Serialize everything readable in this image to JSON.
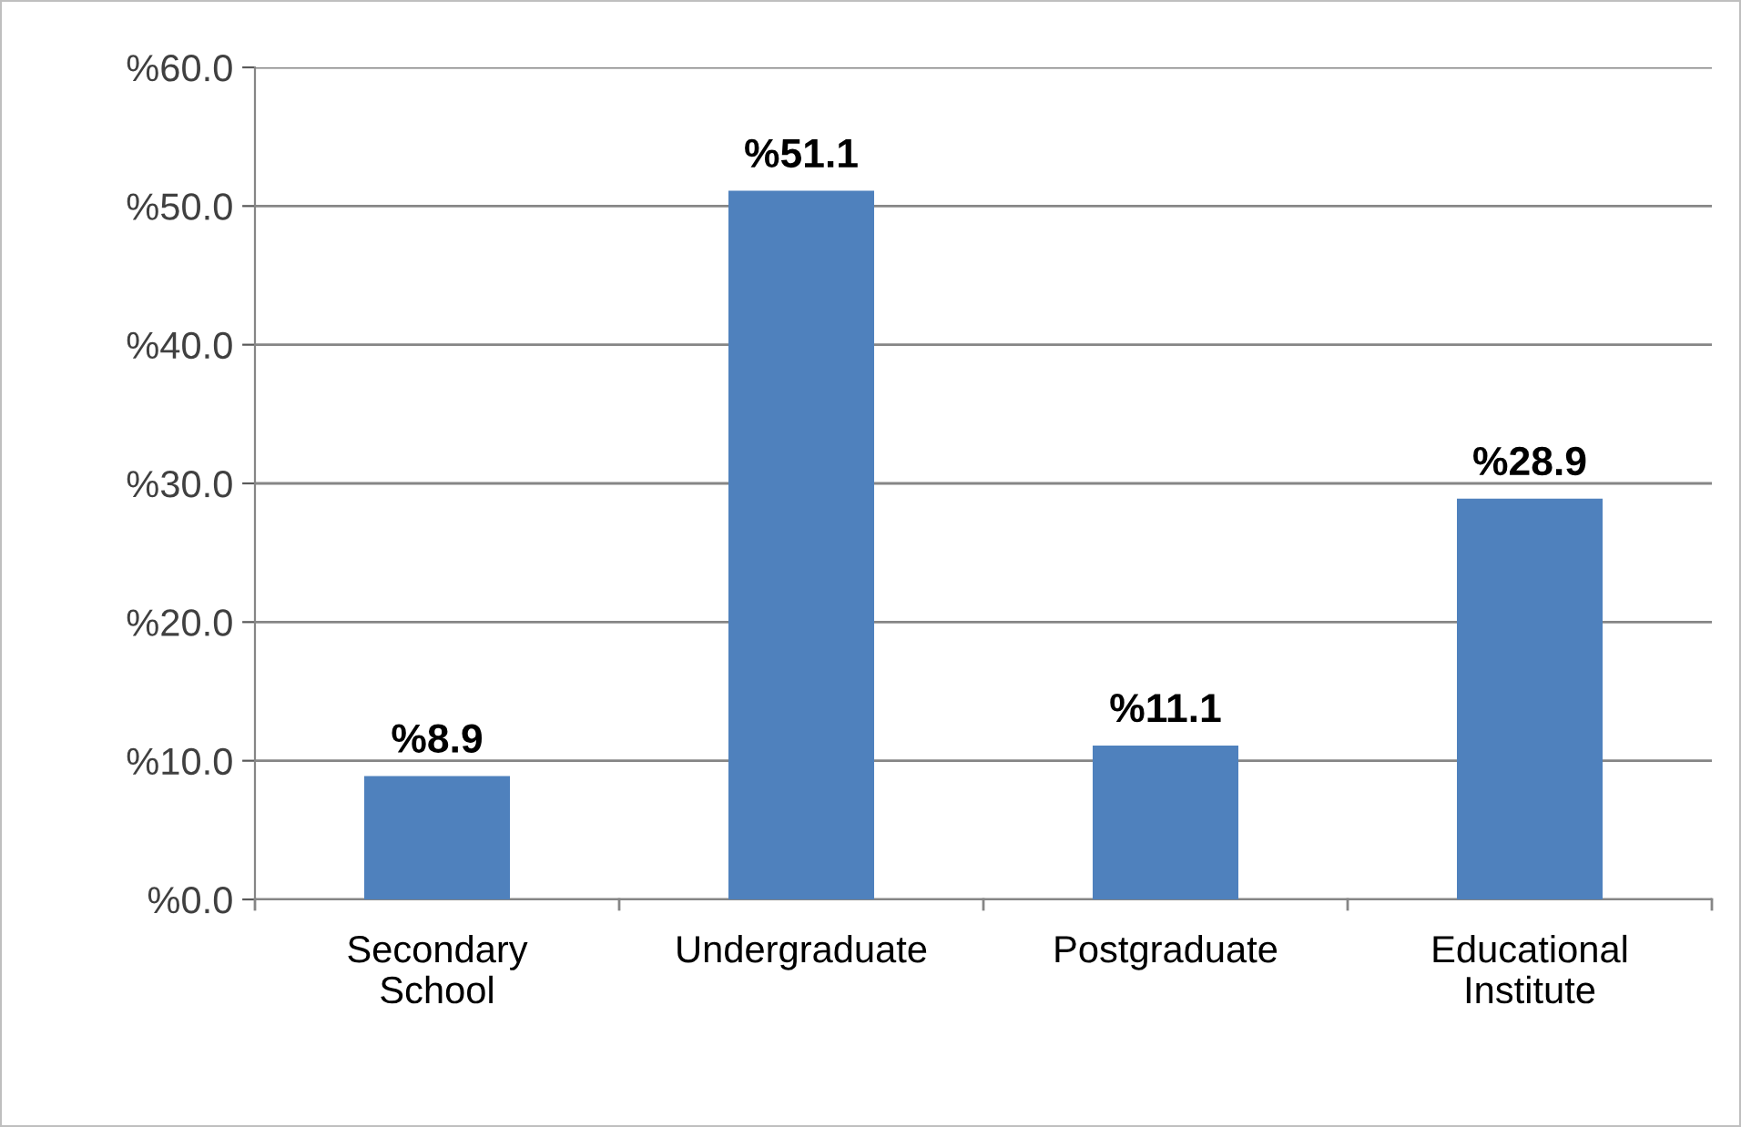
{
  "chart_data": {
    "type": "bar",
    "categories": [
      "Secondary\nSchool",
      "Undergraduate",
      "Postgraduate",
      "Educational\nInstitute"
    ],
    "values": [
      8.9,
      51.1,
      11.1,
      28.9
    ],
    "value_labels": [
      "%8.9",
      "%51.1",
      "%11.1",
      "%28.9"
    ],
    "color": "#4f81bd",
    "ylim": [
      0,
      60
    ],
    "yticks": [
      {
        "value": 0,
        "label": "%0.0"
      },
      {
        "value": 10,
        "label": "%10.0"
      },
      {
        "value": 20,
        "label": "%20.0"
      },
      {
        "value": 30,
        "label": "%30.0"
      },
      {
        "value": 40,
        "label": "%40.0"
      },
      {
        "value": 50,
        "label": "%50.0"
      },
      {
        "value": 60,
        "label": "%60.0"
      }
    ],
    "grid": "y"
  }
}
